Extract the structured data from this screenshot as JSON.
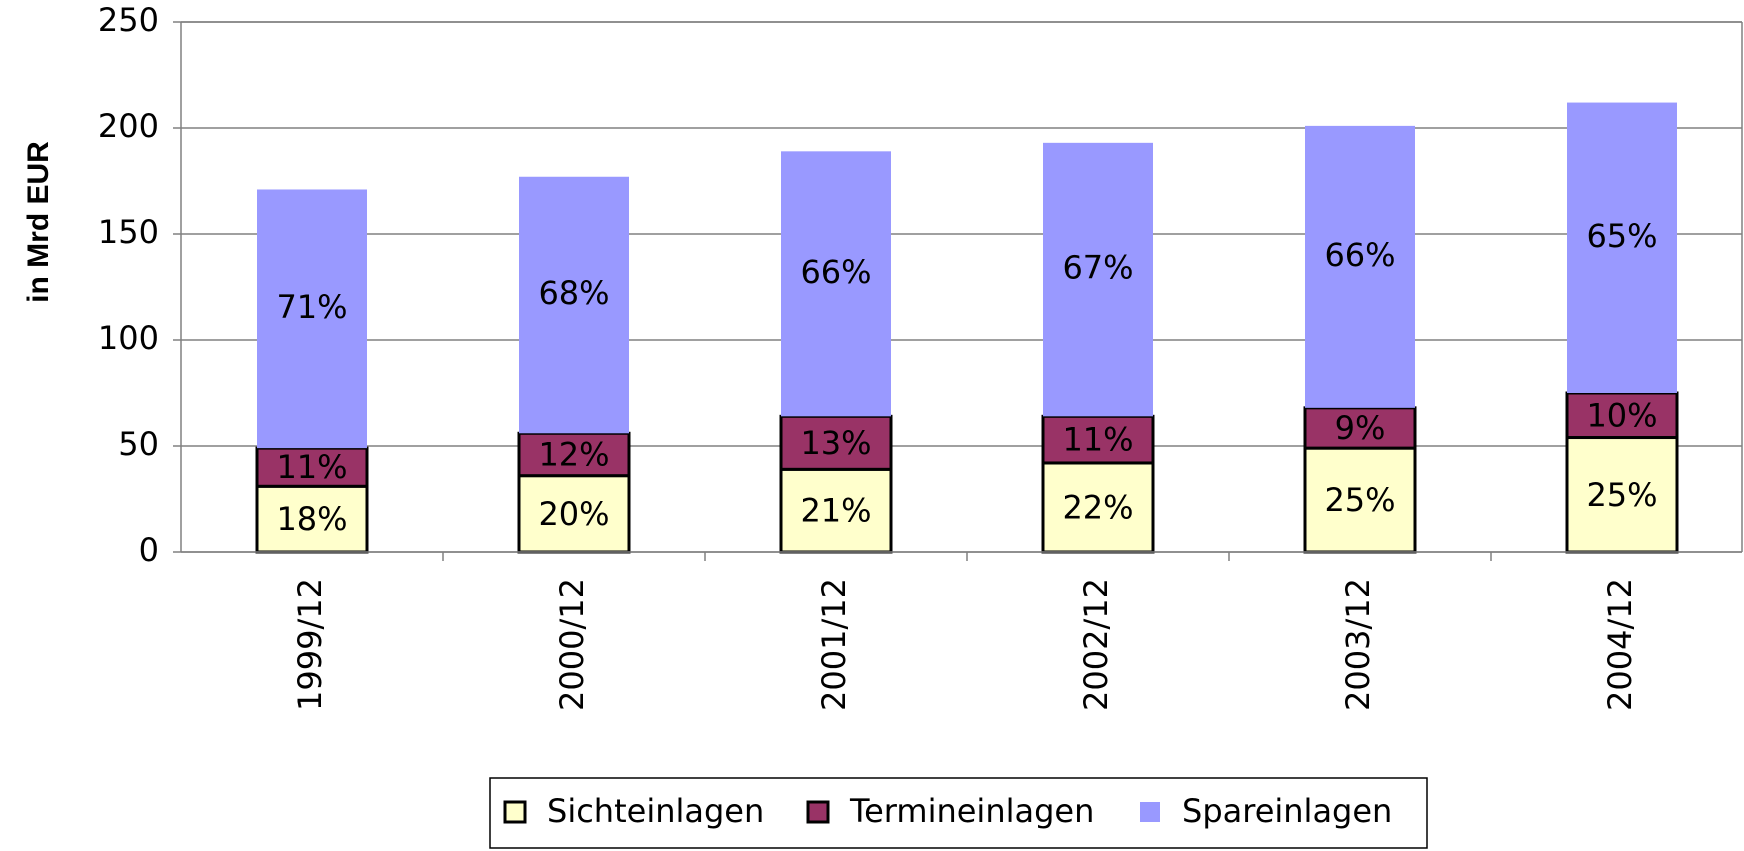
{
  "chart_data": {
    "type": "stacked_bar",
    "ylabel": "in Mrd EUR",
    "categories": [
      "1999/12",
      "2000/12",
      "2001/12",
      "2002/12",
      "2003/12",
      "2004/12"
    ],
    "series": [
      {
        "name": "Sichteinlagen",
        "color": "#ffffcc",
        "values": [
          31,
          36,
          39,
          42,
          49,
          54
        ],
        "labels": [
          "18%",
          "20%",
          "21%",
          "22%",
          "25%",
          "25%"
        ]
      },
      {
        "name": "Termineinlagen",
        "color": "#993366",
        "values": [
          18,
          20,
          25,
          22,
          19,
          21
        ],
        "labels": [
          "11%",
          "12%",
          "13%",
          "11%",
          "9%",
          "10%"
        ]
      },
      {
        "name": "Spareinlagen",
        "color": "#9999ff",
        "values": [
          122,
          121,
          125,
          129,
          133,
          137
        ],
        "labels": [
          "71%",
          "68%",
          "66%",
          "67%",
          "66%",
          "65%"
        ]
      }
    ],
    "ylim": [
      0,
      250
    ],
    "yticks": [
      0,
      50,
      100,
      150,
      200,
      250
    ],
    "grid": true
  }
}
